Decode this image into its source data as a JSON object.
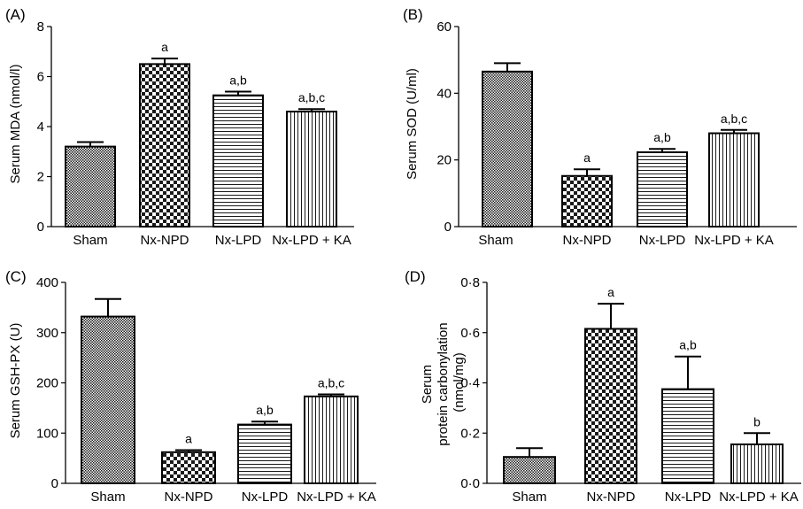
{
  "chart_data": [
    {
      "panel": "(A)",
      "type": "bar",
      "categories": [
        "Sham",
        "Nx-NPD",
        "Nx-LPD",
        "Nx-LPD + KA"
      ],
      "values": [
        3.2,
        6.5,
        5.25,
        4.6
      ],
      "errors": [
        0.18,
        0.22,
        0.15,
        0.1
      ],
      "sig_labels": [
        "",
        "a",
        "a,b",
        "a,b,c"
      ],
      "ylabel": "Serum MDA (nmol/l)",
      "ylim": [
        0,
        8
      ],
      "yticks": [
        0,
        2,
        4,
        6,
        8
      ],
      "ytick_labels": [
        "0",
        "2",
        "4",
        "6",
        "8"
      ]
    },
    {
      "panel": "(B)",
      "type": "bar",
      "categories": [
        "Sham",
        "Nx-NPD",
        "Nx-LPD",
        "Nx-LPD + KA"
      ],
      "values": [
        46.5,
        15.2,
        22.3,
        28
      ],
      "errors": [
        2.5,
        2,
        1,
        1
      ],
      "sig_labels": [
        "",
        "a",
        "a,b",
        "a,b,c"
      ],
      "ylabel": "Serum SOD (U/ml)",
      "ylim": [
        0,
        60
      ],
      "yticks": [
        0,
        20,
        40,
        60
      ],
      "ytick_labels": [
        "0",
        "20",
        "40",
        "60"
      ]
    },
    {
      "panel": "(C)",
      "type": "bar",
      "categories": [
        "Sham",
        "Nx-NPD",
        "Nx-LPD",
        "Nx-LPD + KA"
      ],
      "values": [
        332,
        62,
        117,
        173
      ],
      "errors": [
        35,
        4,
        6,
        4
      ],
      "sig_labels": [
        "",
        "a",
        "a,b",
        "a,b,c"
      ],
      "ylabel": "Serum GSH-PX (U)",
      "ylim": [
        0,
        400
      ],
      "yticks": [
        0,
        100,
        200,
        300,
        400
      ],
      "ytick_labels": [
        "0",
        "100",
        "200",
        "300",
        "400"
      ]
    },
    {
      "panel": "(D)",
      "type": "bar",
      "categories": [
        "Sham",
        "Nx-NPD",
        "Nx-LPD",
        "Nx-LPD + KA"
      ],
      "values": [
        0.105,
        0.615,
        0.375,
        0.155
      ],
      "errors": [
        0.035,
        0.1,
        0.13,
        0.045
      ],
      "sig_labels": [
        "",
        "a",
        "a,b",
        "b"
      ],
      "ylabel": [
        "Serum",
        "protein carbonylation",
        "(nmol/mg)"
      ],
      "ylim": [
        0,
        0.8
      ],
      "yticks": [
        0,
        0.2,
        0.4,
        0.6,
        0.8
      ],
      "ytick_labels": [
        "0·0",
        "0·2",
        "0·4",
        "0·6",
        "0·8"
      ]
    }
  ],
  "pattern_colors": {
    "ink": "#1a1a1a",
    "paper": "#ffffff"
  }
}
